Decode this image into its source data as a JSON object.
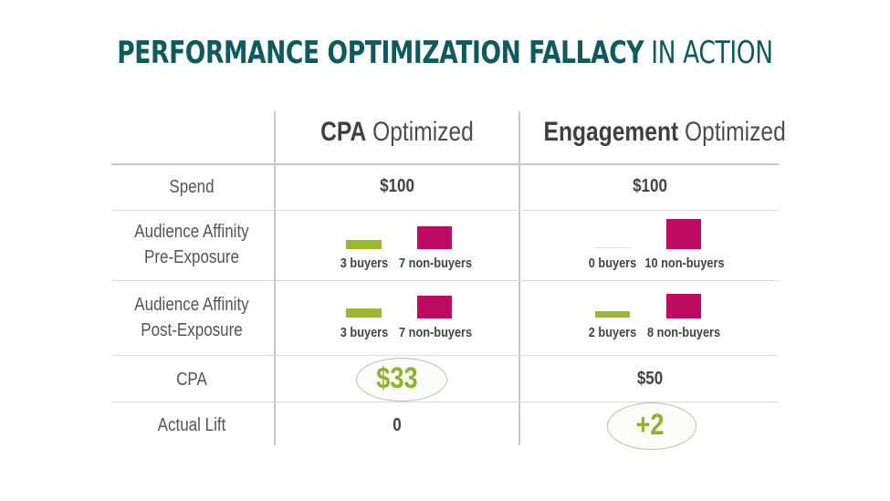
{
  "title": {
    "bold": "PERFORMANCE OPTIMIZATION FALLACY",
    "light": "IN ACTION"
  },
  "columns": [
    {
      "bold": "CPA",
      "rest": "Optimized"
    },
    {
      "bold": "Engagement",
      "rest": "Optimized"
    }
  ],
  "rows": {
    "spend": {
      "label": "Spend",
      "cpa": "$100",
      "engagement": "$100"
    },
    "pre": {
      "label_line1": "Audience Affinity",
      "label_line2": "Pre-Exposure",
      "cpa_buyers": "3 buyers",
      "cpa_nonbuyers": "7 non-buyers",
      "eng_buyers": "0 buyers",
      "eng_nonbuyers": "10 non-buyers"
    },
    "post": {
      "label_line1": "Audience Affinity",
      "label_line2": "Post-Exposure",
      "cpa_buyers": "3 buyers",
      "cpa_nonbuyers": "7 non-buyers",
      "eng_buyers": "2 buyers",
      "eng_nonbuyers": "8 non-buyers"
    },
    "cpa": {
      "label": "CPA",
      "cpa": "$33",
      "engagement": "$50"
    },
    "lift": {
      "label": "Actual Lift",
      "cpa": "0",
      "engagement": "+2"
    }
  },
  "colors": {
    "title": "#0f5a5c",
    "buyer": "#9bb82e",
    "nonbuyer": "#be0b63",
    "highlight": "#8db22f"
  }
}
